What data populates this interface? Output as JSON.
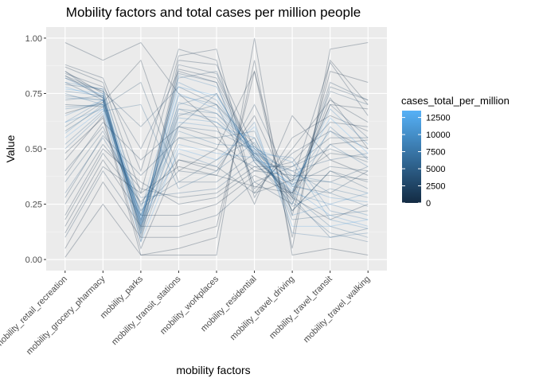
{
  "chart_data": {
    "type": "parallel-coordinates",
    "title": "Mobility factors and total cases per million people",
    "xlabel": "mobility factors",
    "ylabel": "Value",
    "ylim": [
      -0.05,
      1.05
    ],
    "y_ticks": [
      0.0,
      0.25,
      0.5,
      0.75,
      1.0
    ],
    "y_tick_labels": [
      "0.00",
      "0.25",
      "0.50",
      "0.75",
      "1.00"
    ],
    "categories": [
      "mobility_retail_recreation",
      "mobility_grocery_pharmacy",
      "mobility_parks",
      "mobility_transit_stations",
      "mobility_workplaces",
      "mobility_residential",
      "mobility_travel_driving",
      "mobility_travel_transit",
      "mobility_travel_walking"
    ],
    "series_colors": {
      "low": "#132b43",
      "high": "#56b1f7"
    },
    "grid": true,
    "legend": {
      "title": "cases_total_per_million",
      "position": "right",
      "values": [
        0,
        2500,
        5000,
        7500,
        10000,
        12500
      ],
      "labels": [
        "0",
        "2500",
        "5000",
        "7500",
        "10000",
        "12500"
      ],
      "max": 13500
    },
    "series": [
      {
        "values": [
          0.83,
          0.73,
          0.15,
          0.86,
          0.82,
          0.47,
          0.28,
          0.73,
          0.5
        ],
        "cases": 1200
      },
      {
        "values": [
          0.8,
          0.72,
          0.17,
          0.82,
          0.85,
          0.46,
          0.3,
          0.7,
          0.55
        ],
        "cases": 3400
      },
      {
        "values": [
          0.85,
          0.75,
          0.13,
          0.9,
          0.88,
          0.5,
          0.35,
          0.89,
          0.65
        ],
        "cases": 800
      },
      {
        "values": [
          0.75,
          0.7,
          0.2,
          0.7,
          0.75,
          0.44,
          0.25,
          0.6,
          0.45
        ],
        "cases": 6500
      },
      {
        "values": [
          0.7,
          0.69,
          0.18,
          0.65,
          0.7,
          0.52,
          0.22,
          0.4,
          0.35
        ],
        "cases": 2100
      },
      {
        "values": [
          0.65,
          0.72,
          0.12,
          0.62,
          0.6,
          0.55,
          0.2,
          0.25,
          0.3
        ],
        "cases": 9800
      },
      {
        "values": [
          0.6,
          0.71,
          0.1,
          0.55,
          0.55,
          0.58,
          0.18,
          0.2,
          0.22
        ],
        "cases": 4200
      },
      {
        "values": [
          0.55,
          0.68,
          0.08,
          0.5,
          0.45,
          0.6,
          0.15,
          0.15,
          0.18
        ],
        "cases": 12500
      },
      {
        "values": [
          0.5,
          0.66,
          0.15,
          0.48,
          0.42,
          0.62,
          0.12,
          0.1,
          0.12
        ],
        "cases": 7400
      },
      {
        "values": [
          0.45,
          0.65,
          0.05,
          0.45,
          0.4,
          0.65,
          0.28,
          0.18,
          0.25
        ],
        "cases": 500
      },
      {
        "values": [
          0.4,
          0.6,
          0.22,
          0.4,
          0.38,
          0.7,
          0.33,
          0.3,
          0.4
        ],
        "cases": 2600
      },
      {
        "values": [
          0.35,
          0.58,
          0.25,
          0.35,
          0.35,
          0.48,
          0.36,
          0.35,
          0.42
        ],
        "cases": 3800
      },
      {
        "values": [
          0.3,
          0.55,
          0.28,
          0.3,
          0.32,
          0.45,
          0.4,
          0.45,
          0.48
        ],
        "cases": 5200
      },
      {
        "values": [
          0.25,
          0.52,
          0.32,
          0.28,
          0.3,
          0.42,
          0.42,
          0.55,
          0.55
        ],
        "cases": 1500
      },
      {
        "values": [
          0.2,
          0.5,
          0.35,
          0.25,
          0.28,
          0.4,
          0.44,
          0.62,
          0.6
        ],
        "cases": 900
      },
      {
        "values": [
          0.15,
          0.45,
          0.2,
          0.2,
          0.25,
          0.38,
          0.3,
          0.7,
          0.68
        ],
        "cases": 300
      },
      {
        "values": [
          0.1,
          0.4,
          0.15,
          0.15,
          0.2,
          0.35,
          0.25,
          0.78,
          0.72
        ],
        "cases": 2200
      },
      {
        "values": [
          0.05,
          0.35,
          0.1,
          0.1,
          0.15,
          0.85,
          0.2,
          0.85,
          0.8
        ],
        "cases": 150
      },
      {
        "values": [
          0.01,
          0.25,
          0.02,
          0.05,
          0.1,
          0.9,
          0.05,
          0.95,
          0.98
        ],
        "cases": 50
      },
      {
        "values": [
          0.82,
          0.74,
          0.16,
          0.8,
          0.72,
          0.48,
          0.3,
          0.25,
          0.2
        ],
        "cases": 8500
      },
      {
        "values": [
          0.78,
          0.73,
          0.18,
          0.75,
          0.68,
          0.5,
          0.32,
          0.2,
          0.15
        ],
        "cases": 11000
      },
      {
        "values": [
          0.74,
          0.72,
          0.14,
          0.68,
          0.62,
          0.47,
          0.29,
          0.15,
          0.1
        ],
        "cases": 6000
      },
      {
        "values": [
          0.72,
          0.74,
          0.12,
          0.6,
          0.58,
          0.49,
          0.26,
          0.12,
          0.08
        ],
        "cases": 4800
      },
      {
        "values": [
          0.68,
          0.7,
          0.2,
          0.58,
          0.52,
          0.51,
          0.38,
          0.35,
          0.3
        ],
        "cases": 7200
      },
      {
        "values": [
          0.62,
          0.68,
          0.16,
          0.52,
          0.48,
          0.46,
          0.34,
          0.28,
          0.26
        ],
        "cases": 10200
      },
      {
        "values": [
          0.87,
          0.8,
          0.3,
          0.92,
          0.95,
          0.3,
          0.5,
          0.72,
          0.62
        ],
        "cases": 700
      },
      {
        "values": [
          0.88,
          0.82,
          0.4,
          0.95,
          0.9,
          0.28,
          0.55,
          0.65,
          0.58
        ],
        "cases": 1100
      },
      {
        "values": [
          0.84,
          0.78,
          0.5,
          0.85,
          0.8,
          0.32,
          0.48,
          0.58,
          0.5
        ],
        "cases": 1900
      },
      {
        "values": [
          0.82,
          0.76,
          0.6,
          0.78,
          0.7,
          0.35,
          0.42,
          0.5,
          0.44
        ],
        "cases": 2900
      },
      {
        "values": [
          0.98,
          0.9,
          0.98,
          0.75,
          0.6,
          0.25,
          0.65,
          0.45,
          0.38
        ],
        "cases": 400
      },
      {
        "values": [
          0.66,
          0.71,
          0.9,
          0.4,
          0.5,
          0.85,
          0.1,
          0.9,
          0.7
        ],
        "cases": 200
      },
      {
        "values": [
          0.58,
          0.69,
          0.8,
          0.35,
          0.45,
          0.55,
          0.22,
          0.4,
          0.32
        ],
        "cases": 3100
      },
      {
        "values": [
          0.52,
          0.67,
          0.7,
          0.32,
          0.4,
          0.53,
          0.24,
          0.32,
          0.28
        ],
        "cases": 5600
      },
      {
        "values": [
          0.48,
          0.64,
          0.02,
          0.02,
          0.02,
          1.0,
          0.02,
          0.05,
          0.02
        ],
        "cases": 100
      },
      {
        "values": [
          0.8,
          0.77,
          0.22,
          0.83,
          0.78,
          0.45,
          0.31,
          0.68,
          0.52
        ],
        "cases": 9000
      },
      {
        "values": [
          0.77,
          0.75,
          0.19,
          0.78,
          0.74,
          0.47,
          0.33,
          0.64,
          0.48
        ],
        "cases": 13000
      },
      {
        "values": [
          0.73,
          0.72,
          0.17,
          0.74,
          0.7,
          0.49,
          0.35,
          0.58,
          0.46
        ],
        "cases": 8000
      },
      {
        "values": [
          0.69,
          0.7,
          0.14,
          0.71,
          0.66,
          0.51,
          0.37,
          0.52,
          0.42
        ],
        "cases": 6800
      },
      {
        "values": [
          0.85,
          0.73,
          0.08,
          0.88,
          0.84,
          0.44,
          0.27,
          0.8,
          0.72
        ],
        "cases": 2400
      },
      {
        "values": [
          0.83,
          0.76,
          0.11,
          0.84,
          0.8,
          0.46,
          0.29,
          0.76,
          0.7
        ],
        "cases": 3600
      },
      {
        "values": [
          0.38,
          0.62,
          0.45,
          0.6,
          0.55,
          0.4,
          0.38,
          0.38,
          0.36
        ],
        "cases": 1700
      },
      {
        "values": [
          0.28,
          0.56,
          0.38,
          0.55,
          0.5,
          0.42,
          0.34,
          0.42,
          0.4
        ],
        "cases": 2800
      },
      {
        "values": [
          0.18,
          0.48,
          0.26,
          0.45,
          0.42,
          0.3,
          0.36,
          0.48,
          0.46
        ],
        "cases": 1300
      },
      {
        "values": [
          0.12,
          0.42,
          0.3,
          0.42,
          0.38,
          0.33,
          0.3,
          0.52,
          0.54
        ],
        "cases": 600
      },
      {
        "values": [
          0.62,
          0.72,
          0.18,
          0.66,
          0.64,
          0.48,
          0.46,
          0.22,
          0.18
        ],
        "cases": 7800
      },
      {
        "values": [
          0.57,
          0.7,
          0.16,
          0.64,
          0.62,
          0.5,
          0.44,
          0.18,
          0.14
        ],
        "cases": 9400
      },
      {
        "values": [
          0.76,
          0.74,
          0.2,
          0.68,
          0.66,
          0.48,
          0.4,
          0.3,
          0.24
        ],
        "cases": 5800
      },
      {
        "values": [
          0.79,
          0.77,
          0.24,
          0.6,
          0.75,
          0.46,
          0.28,
          0.1,
          0.14
        ],
        "cases": 4400
      }
    ]
  }
}
